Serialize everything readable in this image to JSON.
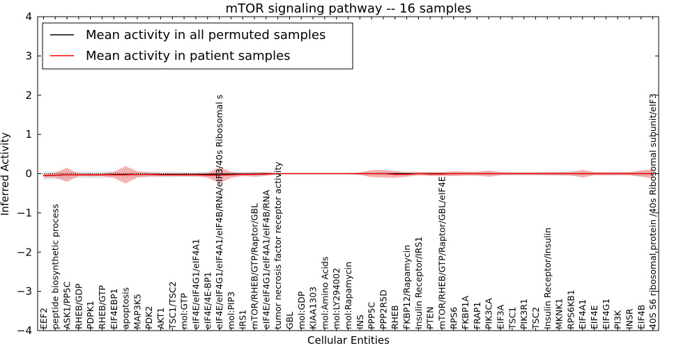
{
  "chart_data": {
    "type": "line",
    "title": "mTOR signaling pathway -- 16 samples",
    "xlabel": "Cellular Entities",
    "ylabel": "Inferred Activity",
    "ylim": [
      -4,
      4
    ],
    "yticks": [
      -4,
      -3,
      -2,
      -1,
      0,
      1,
      2,
      3,
      4
    ],
    "ytick_labels": [
      "−4",
      "−3",
      "−2",
      "−1",
      "0",
      "1",
      "2",
      "3",
      "4"
    ],
    "grid": false,
    "legend": {
      "position": "top-left",
      "entries": [
        {
          "label": "Mean activity in all permuted samples",
          "color": "#000000"
        },
        {
          "label": "Mean activity in patient samples",
          "color": "#ff0000"
        }
      ]
    },
    "categories": [
      "EEF2",
      "peptide biosynthetic process",
      "ASK1/PP5C",
      "RHEB/GDP",
      "PDPK1",
      "RHEB/GTP",
      "EIF4EBP1",
      "apoptosis",
      "MAP3K5",
      "PDK2",
      "AKT1",
      "TSC1/TSC2",
      "mol:GTP",
      "eIF4E/eIF4G1/eIF4A1",
      "eIF4E/4E-BP1",
      "eIF4E/eIF4G1/eIF4A1/eIF4B/RNA/eIF3/40s Ribosomal s",
      "mol:PIP3",
      "IRS1",
      "mTOR/RHEB/GTP/Raptor/GBL",
      "eIF4E/eIF4G1/eIF4A1/eIF4B/RNA",
      "tumor necrosis factor receptor activity",
      "GBL",
      "mol:GDP",
      "KIAA1303",
      "mol:Amino Acids",
      "mol:LY294002",
      "mol:Rapamycin",
      "INS",
      "PPP5C",
      "PPP2R5D",
      "RHEB",
      "FKBP12/Rapamycin",
      "Insulin Receptor/IRS1",
      "PTEN",
      "mTOR/RHEB/GTP/Raptor/GBL/eIF4E",
      "RPS6",
      "FKBP1A",
      "FRAP1",
      "PIK3CA",
      "EIF3A",
      "TSC1",
      "PIK3R1",
      "TSC2",
      "Insulin Receptor/Insulin",
      "MKNK1",
      "RPS6KB1",
      "EIF4A1",
      "EIF4E",
      "EIF4G1",
      "PI3K",
      "INSR",
      "EIF4B",
      "40S S6 ribosomal protein /40s Ribosomal subunit/eIF3"
    ],
    "series": [
      {
        "name": "Mean activity in all permuted samples",
        "color": "#000000",
        "band_color": "#cccccc",
        "values": [
          -0.05,
          -0.04,
          -0.03,
          -0.03,
          -0.03,
          -0.03,
          -0.02,
          -0.02,
          -0.02,
          -0.02,
          -0.02,
          -0.02,
          -0.02,
          -0.02,
          -0.02,
          -0.01,
          -0.01,
          -0.01,
          -0.01,
          0,
          0,
          0,
          0,
          0,
          0,
          0,
          0,
          0,
          0,
          0,
          0,
          0,
          0,
          0,
          0,
          0,
          0,
          0,
          0,
          0,
          0,
          0,
          0,
          0,
          0,
          0,
          0,
          0,
          0,
          0,
          0,
          0,
          0
        ],
        "band": [
          0.1,
          0.1,
          0.09,
          0.08,
          0.08,
          0.08,
          0.07,
          0.07,
          0.07,
          0.07,
          0.07,
          0.07,
          0.06,
          0.06,
          0.06,
          0.05,
          0.05,
          0.05,
          0.05,
          0.03,
          0.02,
          0.02,
          0.02,
          0.02,
          0.02,
          0.02,
          0.02,
          0.03,
          0.04,
          0.05,
          0.05,
          0.04,
          0.04,
          0.04,
          0.04,
          0.04,
          0.04,
          0.05,
          0.04,
          0.04,
          0.04,
          0.04,
          0.04,
          0.04,
          0.05,
          0.06,
          0.04,
          0.04,
          0.04,
          0.04,
          0.04,
          0.06,
          0.06
        ]
      },
      {
        "name": "Mean activity in patient samples",
        "color": "#ff0000",
        "band_color": "#f08080",
        "values": [
          -0.05,
          -0.04,
          -0.03,
          -0.03,
          -0.03,
          -0.03,
          -0.03,
          -0.03,
          -0.02,
          -0.02,
          -0.03,
          -0.03,
          -0.03,
          -0.03,
          -0.04,
          -0.04,
          -0.03,
          -0.02,
          -0.02,
          -0.01,
          0,
          0,
          0,
          0,
          0,
          0,
          0,
          0,
          0,
          0,
          -0.02,
          -0.02,
          0,
          -0.01,
          -0.01,
          0,
          0,
          0,
          0,
          0,
          0,
          0,
          0,
          0,
          0,
          0,
          0,
          0,
          0,
          0,
          0,
          0,
          0
        ],
        "band": [
          0.04,
          0.06,
          0.18,
          0.03,
          0.04,
          0.03,
          0.08,
          0.22,
          0.08,
          0.05,
          0.04,
          0.04,
          0.04,
          0.04,
          0.06,
          0.2,
          0.08,
          0.04,
          0.06,
          0.05,
          0.01,
          0.01,
          0.01,
          0.01,
          0.01,
          0.01,
          0.01,
          0.03,
          0.09,
          0.1,
          0.09,
          0.06,
          0.04,
          0.05,
          0.05,
          0.06,
          0.05,
          0.05,
          0.08,
          0.04,
          0.03,
          0.03,
          0.03,
          0.04,
          0.04,
          0.04,
          0.1,
          0.04,
          0.04,
          0.04,
          0.04,
          0.08,
          0.12
        ]
      }
    ]
  }
}
